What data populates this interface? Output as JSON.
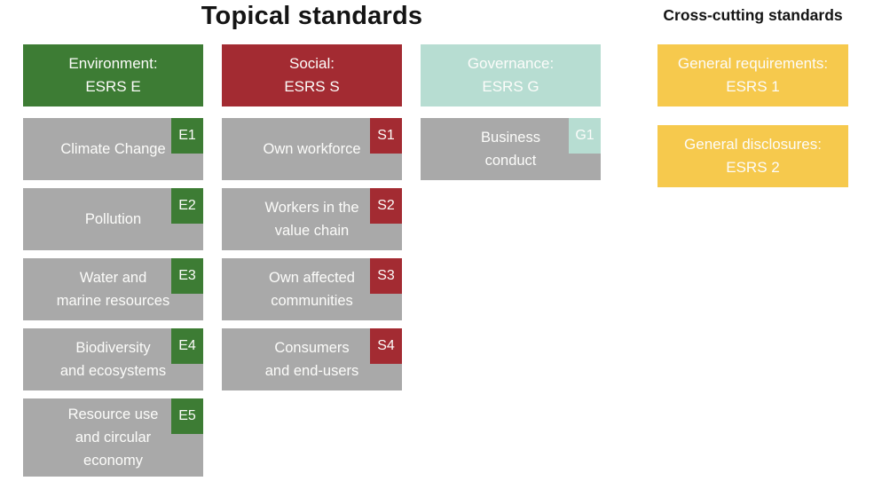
{
  "titles": {
    "topical": "Topical standards",
    "cross_cutting": "Cross-cutting standards"
  },
  "colors": {
    "green": "#3d7c34",
    "red": "#a32b32",
    "teal": "#b7ddd2",
    "yellow": "#f6c94d",
    "gray": "#a9a9a9",
    "text_light": "#fcfcfa",
    "title": "#141414"
  },
  "columns": [
    {
      "id": "environment",
      "header": [
        "Environment:",
        "ESRS E"
      ],
      "items": [
        {
          "lines": [
            "Climate Change"
          ],
          "tag": "E1"
        },
        {
          "lines": [
            "Pollution"
          ],
          "tag": "E2"
        },
        {
          "lines": [
            "Water and",
            "marine resources"
          ],
          "tag": "E3"
        },
        {
          "lines": [
            "Biodiversity",
            "and ecosystems"
          ],
          "tag": "E4"
        },
        {
          "lines": [
            "Resource use",
            "and circular",
            "economy"
          ],
          "tag": "E5"
        }
      ]
    },
    {
      "id": "social",
      "header": [
        "Social:",
        "ESRS S"
      ],
      "items": [
        {
          "lines": [
            "Own workforce"
          ],
          "tag": "S1"
        },
        {
          "lines": [
            "Workers in the",
            "value chain"
          ],
          "tag": "S2"
        },
        {
          "lines": [
            "Own affected",
            "communities"
          ],
          "tag": "S3"
        },
        {
          "lines": [
            "Consumers",
            "and end-users"
          ],
          "tag": "S4"
        }
      ]
    },
    {
      "id": "governance",
      "header": [
        "Governance:",
        "ESRS G"
      ],
      "items": [
        {
          "lines": [
            "Business",
            "conduct"
          ],
          "tag": "G1"
        }
      ]
    }
  ],
  "cross_cutting": {
    "items": [
      {
        "lines": [
          "General requirements:",
          "ESRS 1"
        ]
      },
      {
        "lines": [
          "General disclosures:",
          "ESRS 2"
        ]
      }
    ]
  }
}
